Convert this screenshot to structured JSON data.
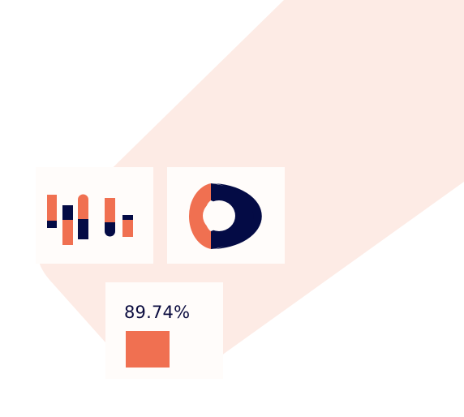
{
  "colors": {
    "background": "#ffffff",
    "decor": "#fdebe5",
    "card": "#fffcfa",
    "accent": "#f07051",
    "navy": "#040b45"
  },
  "widgets": {
    "bar_widget": {
      "icon": "bar-chart-icon",
      "bars": [
        {
          "color": "accent",
          "shape": "square"
        },
        {
          "color": "navy",
          "shape": "square"
        },
        {
          "color": "accent",
          "shape": "rounded"
        },
        {
          "color": "accent",
          "shape": "rounded"
        },
        {
          "color": "navy",
          "shape": "square"
        }
      ]
    },
    "donut_widget": {
      "icon": "donut-chart-icon",
      "slices": [
        {
          "color": "navy",
          "fraction": 0.6
        },
        {
          "color": "accent",
          "fraction": 0.4
        }
      ]
    },
    "kpi_widget": {
      "value": "89.74%",
      "swatch_color": "#f07051"
    }
  }
}
